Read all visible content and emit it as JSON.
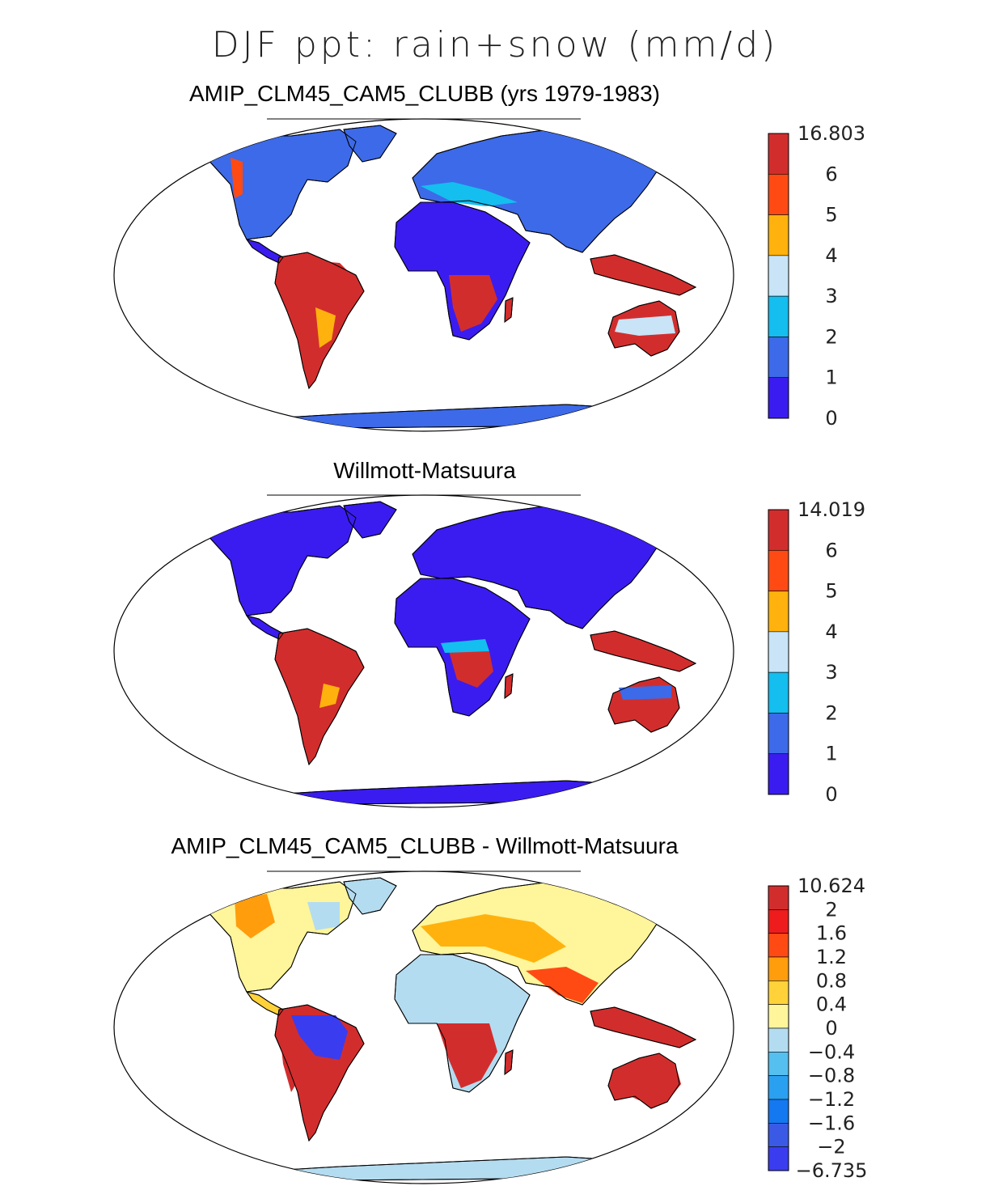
{
  "title": "DJF ppt: rain+snow (mm/d)",
  "panels": [
    {
      "title": "AMIP_CLM45_CAM5_CLUBB (yrs 1979-1983)",
      "colorbar": {
        "labels": [
          "16.803",
          "6",
          "5",
          "4",
          "3",
          "2",
          "1",
          "0"
        ],
        "colors": [
          "#d22d2d",
          "#ff4a14",
          "#ffb20d",
          "#c8e4f6",
          "#14beef",
          "#3d6ae8",
          "#3a1cf0"
        ]
      },
      "palette": {
        "north": "#3d6ae8",
        "temperate": "#3a1cf0",
        "desert": "#3a1cf0",
        "tropic": "#d22d2d",
        "mid": "#ffb20d",
        "ice": "#3d6ae8"
      }
    },
    {
      "title": "Willmott-Matsuura",
      "colorbar": {
        "labels": [
          "14.019",
          "6",
          "5",
          "4",
          "3",
          "2",
          "1",
          "0"
        ],
        "colors": [
          "#d22d2d",
          "#ff4a14",
          "#ffb20d",
          "#c8e4f6",
          "#14beef",
          "#3d6ae8",
          "#3a1cf0"
        ]
      },
      "palette": {
        "north": "#3a1cf0",
        "temperate": "#3a1cf0",
        "desert": "#3a1cf0",
        "tropic": "#d22d2d",
        "mid": "#ff4a14",
        "ice": "#3a1cf0"
      }
    },
    {
      "title": "AMIP_CLM45_CAM5_CLUBB - Willmott-Matsuura",
      "colorbar": {
        "labels": [
          "10.624",
          "2",
          "1.6",
          "1.2",
          "0.8",
          "0.4",
          "0",
          "−0.4",
          "−0.8",
          "−1.2",
          "−1.6",
          "−2",
          "−6.735"
        ],
        "colors": [
          "#d22d2d",
          "#ee1c1c",
          "#ff4a14",
          "#ff9d0d",
          "#ffd23a",
          "#fff59a",
          "#b4dcf0",
          "#55bff0",
          "#2aa0f0",
          "#1478f0",
          "#3a5ae6",
          "#3a3cf0"
        ]
      },
      "palette": {
        "north": "#fff59a",
        "temperate": "#ffd23a",
        "desert": "#b4dcf0",
        "tropic": "#d22d2d",
        "mid": "#ff9d0d",
        "ice": "#b4dcf0"
      }
    }
  ]
}
